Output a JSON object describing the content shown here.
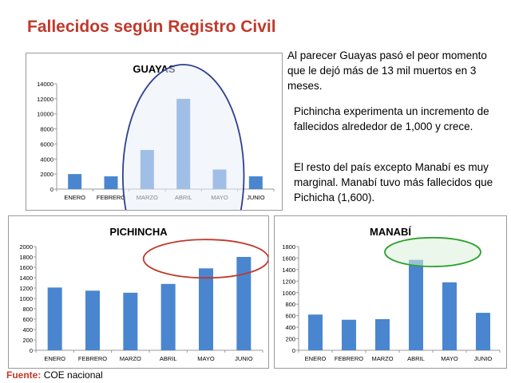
{
  "slide": {
    "title": "Fallecidos según Registro Civil",
    "notes": [
      "Al parecer Guayas pasó el peor momento que le dejó más de 13 mil muertos en 3 meses.",
      "Pichincha experimenta un incremento de fallecidos  alrededor de 1,000 y crece.",
      "El resto del país excepto Manabí es muy marginal. Manabí tuvo más fallecidos que Pichicha (1,600)."
    ],
    "footer_label": "Fuente:",
    "footer_value": "COE nacional"
  },
  "chart_data": [
    {
      "type": "bar",
      "title": "GUAYAS",
      "categories": [
        "ENERO",
        "FEBRERO",
        "MARZO",
        "ABRIL",
        "MAYO",
        "JUNIO"
      ],
      "values": [
        2000,
        1700,
        5200,
        12000,
        2600,
        1700
      ],
      "ylim": [
        0,
        14000
      ],
      "yticks": [
        0,
        2000,
        4000,
        6000,
        8000,
        10000,
        12000,
        14000
      ],
      "grid": false,
      "bar_color": "#4a86d0",
      "highlight": {
        "color": "#2f3f8f",
        "fill": "#e9eff8"
      }
    },
    {
      "type": "bar",
      "title": "PICHINCHA",
      "categories": [
        "ENERO",
        "FEBRERO",
        "MARZO",
        "ABRIL",
        "MAYO",
        "JUNIO"
      ],
      "values": [
        1210,
        1150,
        1110,
        1280,
        1580,
        1800
      ],
      "ylim": [
        0,
        2000
      ],
      "yticks": [
        0,
        200,
        400,
        600,
        800,
        1000,
        1200,
        1400,
        1600,
        1800,
        2000
      ],
      "grid": false,
      "bar_color": "#4a86d0",
      "highlight": {
        "color": "#c0392b",
        "fill": "none"
      }
    },
    {
      "type": "bar",
      "title": "MANABÍ",
      "categories": [
        "ENERO",
        "FEBRERO",
        "MARZO",
        "ABRIL",
        "MAYO",
        "JUNIO"
      ],
      "values": [
        620,
        530,
        540,
        1570,
        1180,
        650
      ],
      "ylim": [
        0,
        1800
      ],
      "yticks": [
        0,
        200,
        400,
        600,
        800,
        1000,
        1200,
        1400,
        1600,
        1800
      ],
      "grid": false,
      "bar_color": "#4a86d0",
      "highlight": {
        "color": "#2ca02c",
        "fill": "#d8f0d8"
      }
    }
  ]
}
